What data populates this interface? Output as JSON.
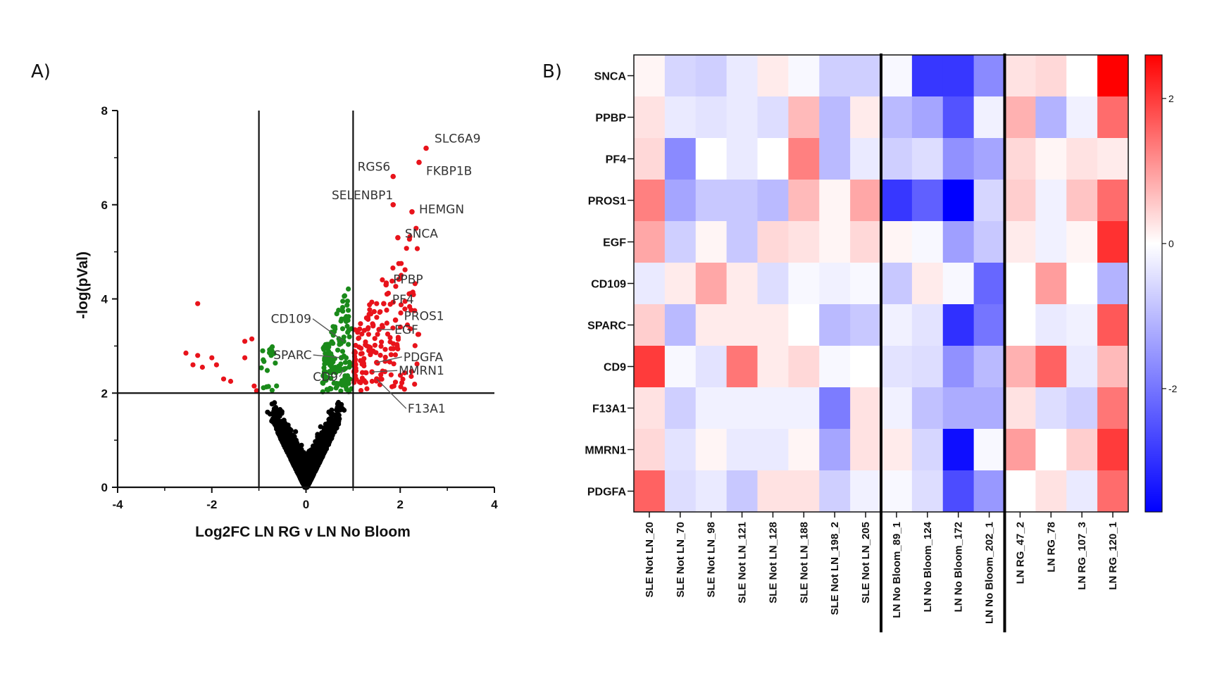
{
  "panels": {
    "a_label": "A)",
    "b_label": "B)"
  },
  "chart_data": [
    {
      "type": "scatter",
      "title": "",
      "xlabel": "Log2FC LN RG v LN No Bloom",
      "ylabel": "-log(pVal)",
      "xlim": [
        -4,
        4
      ],
      "ylim": [
        0,
        8
      ],
      "xticks": [
        "-4",
        "-2",
        "0",
        "2",
        "4"
      ],
      "yticks": [
        "0",
        "2",
        "4",
        "6",
        "8"
      ],
      "thresholds": {
        "log2fc": [
          -1,
          1
        ],
        "neg_log_p": 2
      },
      "colors": {
        "up_significant": "#e8131b",
        "significant_small_fc": "#1a8a1a",
        "not_significant": "#000000"
      },
      "annotations": [
        {
          "label": "SLC6A9",
          "x": 2.55,
          "y": 7.2
        },
        {
          "label": "FKBP1B",
          "x": 2.4,
          "y": 6.9
        },
        {
          "label": "RGS6",
          "x": 1.85,
          "y": 6.6
        },
        {
          "label": "SELENBP1",
          "x": 1.85,
          "y": 6.0
        },
        {
          "label": "HEMGN",
          "x": 2.25,
          "y": 5.85
        },
        {
          "label": "SNCA",
          "x": 1.95,
          "y": 5.3
        },
        {
          "label": "PPBP",
          "x": 1.7,
          "y": 4.3
        },
        {
          "label": "PF4",
          "x": 1.65,
          "y": 3.9
        },
        {
          "label": "PROS1",
          "x": 1.9,
          "y": 3.55
        },
        {
          "label": "EGF",
          "x": 1.55,
          "y": 3.35
        },
        {
          "label": "CD109",
          "x": 0.8,
          "y": 3.1
        },
        {
          "label": "SPARC",
          "x": 0.75,
          "y": 2.75
        },
        {
          "label": "PDGFA",
          "x": 1.5,
          "y": 2.65
        },
        {
          "label": "MMRN1",
          "x": 1.4,
          "y": 2.45
        },
        {
          "label": "CD9",
          "x": 0.8,
          "y": 2.5
        },
        {
          "label": "F13A1",
          "x": 1.5,
          "y": 2.3
        }
      ]
    },
    {
      "type": "heatmap",
      "rows": [
        "SNCA",
        "PPBP",
        "PF4",
        "PROS1",
        "EGF",
        "CD109",
        "SPARC",
        "CD9",
        "F13A1",
        "MMRN1",
        "PDGFA"
      ],
      "columns": [
        "SLE Not LN_20",
        "SLE Not LN_70",
        "SLE Not LN_98",
        "SLE Not LN_121",
        "SLE Not LN_128",
        "SLE Not LN_188",
        "SLE Not LN_198_2",
        "SLE Not LN_205",
        "LN No Bloom_89_1",
        "LN No Bloom_124",
        "LN No Bloom_172",
        "LN No Bloom_202_1",
        "LN RG_47_2",
        "LN RG_78",
        "LN RG_107_3",
        "LN RG_120_1"
      ],
      "group_separators_after_column": [
        8,
        12
      ],
      "colorbar": {
        "min": -3.7,
        "max": 2.6,
        "ticks": [
          2,
          0,
          -2
        ],
        "tick_labels": [
          "2",
          "0",
          "-2"
        ],
        "low_color": "#0000ff",
        "mid_color": "#ffffff",
        "high_color": "#ff0000"
      },
      "values": [
        [
          0.1,
          -0.6,
          -0.7,
          -0.3,
          0.2,
          -0.1,
          -0.7,
          -0.7,
          -0.1,
          -2.9,
          -2.9,
          -1.7,
          0.3,
          0.4,
          0.0,
          2.6
        ],
        [
          0.3,
          -0.3,
          -0.4,
          -0.3,
          -0.5,
          0.7,
          -1.0,
          0.2,
          -1.0,
          -1.3,
          -2.5,
          -0.2,
          0.8,
          -1.1,
          -0.2,
          1.5
        ],
        [
          0.4,
          -1.7,
          0.0,
          -0.3,
          0.0,
          1.3,
          -1.0,
          -0.3,
          -0.7,
          -0.5,
          -1.6,
          -1.3,
          0.4,
          0.1,
          0.3,
          0.2
        ],
        [
          1.3,
          -1.3,
          -0.8,
          -0.8,
          -1.0,
          0.7,
          0.1,
          0.9,
          -2.9,
          -2.3,
          -3.7,
          -0.6,
          0.5,
          -0.2,
          0.6,
          1.5
        ],
        [
          0.9,
          -0.7,
          0.1,
          -0.8,
          0.4,
          0.3,
          0.1,
          0.4,
          0.1,
          -0.1,
          -1.4,
          -0.8,
          0.2,
          -0.2,
          0.1,
          2.1
        ],
        [
          -0.3,
          0.2,
          0.9,
          0.2,
          -0.5,
          -0.1,
          -0.2,
          -0.1,
          -0.8,
          0.2,
          -0.1,
          -2.2,
          0.0,
          1.0,
          0.0,
          -1.1
        ],
        [
          0.5,
          -1.0,
          0.2,
          0.2,
          0.2,
          0.0,
          -1.0,
          -0.8,
          -0.2,
          -0.4,
          -3.0,
          -2.0,
          0.0,
          -0.3,
          -0.2,
          1.7
        ],
        [
          2.0,
          -0.1,
          -0.4,
          1.4,
          0.2,
          0.4,
          -0.1,
          0.0,
          -0.4,
          -0.5,
          -1.6,
          -1.0,
          0.8,
          1.6,
          -0.3,
          0.7
        ],
        [
          0.3,
          -0.7,
          -0.2,
          -0.2,
          -0.2,
          -0.2,
          -1.9,
          0.3,
          -0.2,
          -0.9,
          -1.2,
          -1.2,
          0.3,
          -0.5,
          -0.7,
          1.4
        ],
        [
          0.4,
          -0.4,
          0.1,
          -0.3,
          -0.3,
          0.1,
          -1.3,
          0.3,
          0.2,
          -0.6,
          -3.5,
          -0.1,
          1.0,
          0.0,
          0.5,
          2.0
        ],
        [
          1.6,
          -0.5,
          -0.3,
          -0.8,
          0.3,
          0.3,
          -0.7,
          -0.2,
          -0.1,
          -0.5,
          -2.6,
          -1.5,
          0.0,
          0.3,
          -0.3,
          1.5
        ]
      ]
    }
  ]
}
